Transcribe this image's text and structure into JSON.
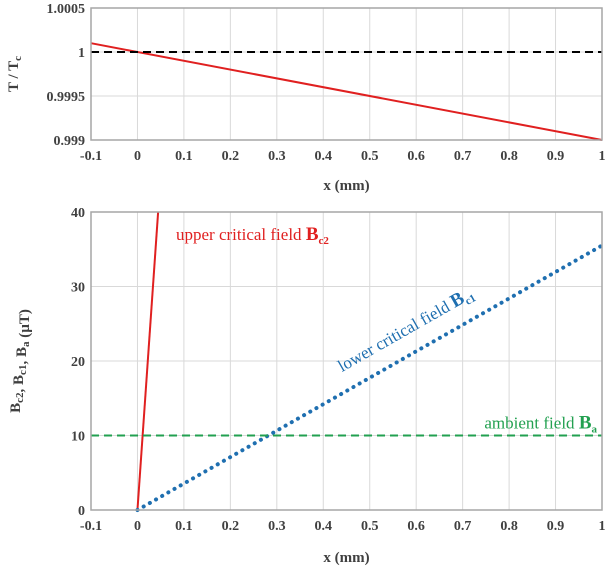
{
  "chart_data": [
    {
      "type": "line",
      "xlabel": "x (mm)",
      "ylabel_main": "T / T",
      "ylabel_sub": "c",
      "xlim": [
        -0.1,
        1
      ],
      "ylim": [
        0.999,
        1.0005
      ],
      "xticks": [
        -0.1,
        0,
        0.1,
        0.2,
        0.3,
        0.4,
        0.5,
        0.6,
        0.7,
        0.8,
        0.9,
        1
      ],
      "xtick_labels": [
        "-0.1",
        "0",
        "0.1",
        "0.2",
        "0.3",
        "0.4",
        "0.5",
        "0.6",
        "0.7",
        "0.8",
        "0.9",
        "1"
      ],
      "yticks": [
        0.999,
        0.9995,
        1,
        1.0005
      ],
      "ytick_labels": [
        "0.999",
        "0.9995",
        "1",
        "1.0005"
      ],
      "grid": true,
      "series": [
        {
          "x": [
            -0.1,
            1
          ],
          "y": [
            1.0001,
            0.999
          ],
          "color": "#e02020",
          "style": "solid"
        },
        {
          "x": [
            -0.1,
            1
          ],
          "y": [
            1,
            1
          ],
          "color": "#000000",
          "style": "dashed"
        }
      ]
    },
    {
      "type": "line",
      "xlabel": "x (mm)",
      "ylabel_parts": [
        {
          "main": "B",
          "sub": "c2"
        },
        {
          "main": ",  B",
          "sub": "c1"
        },
        {
          "main": ",  B",
          "sub": "a"
        },
        {
          "main": "  (µT)",
          "sub": ""
        }
      ],
      "xlim": [
        -0.1,
        1
      ],
      "ylim": [
        0,
        40
      ],
      "xticks": [
        -0.1,
        0,
        0.1,
        0.2,
        0.3,
        0.4,
        0.5,
        0.6,
        0.7,
        0.8,
        0.9,
        1
      ],
      "xtick_labels": [
        "-0.1",
        "0",
        "0.1",
        "0.2",
        "0.3",
        "0.4",
        "0.5",
        "0.6",
        "0.7",
        "0.8",
        "0.9",
        "1"
      ],
      "yticks": [
        0,
        10,
        20,
        30,
        40
      ],
      "ytick_labels": [
        "0",
        "10",
        "20",
        "30",
        "40"
      ],
      "grid": true,
      "series": [
        {
          "x": [
            0,
            0.0445
          ],
          "y": [
            0,
            40
          ],
          "color": "#e02020",
          "style": "solid"
        },
        {
          "x": [
            0,
            1
          ],
          "y": [
            0,
            35.5
          ],
          "color": "#1f6fb0",
          "style": "dotted"
        },
        {
          "x": [
            -0.1,
            1
          ],
          "y": [
            10,
            10
          ],
          "color": "#22a050",
          "style": "dashed"
        }
      ],
      "annotations": [
        {
          "text": "upper critical field ",
          "bold": "B",
          "sub": "c2",
          "color": "#e02020"
        },
        {
          "text": "lower critical field ",
          "bold": "B",
          "sub": "c1",
          "color": "#1f6fb0"
        },
        {
          "text": "ambient field ",
          "bold": "B",
          "sub": "a",
          "color": "#22a050"
        }
      ]
    }
  ]
}
